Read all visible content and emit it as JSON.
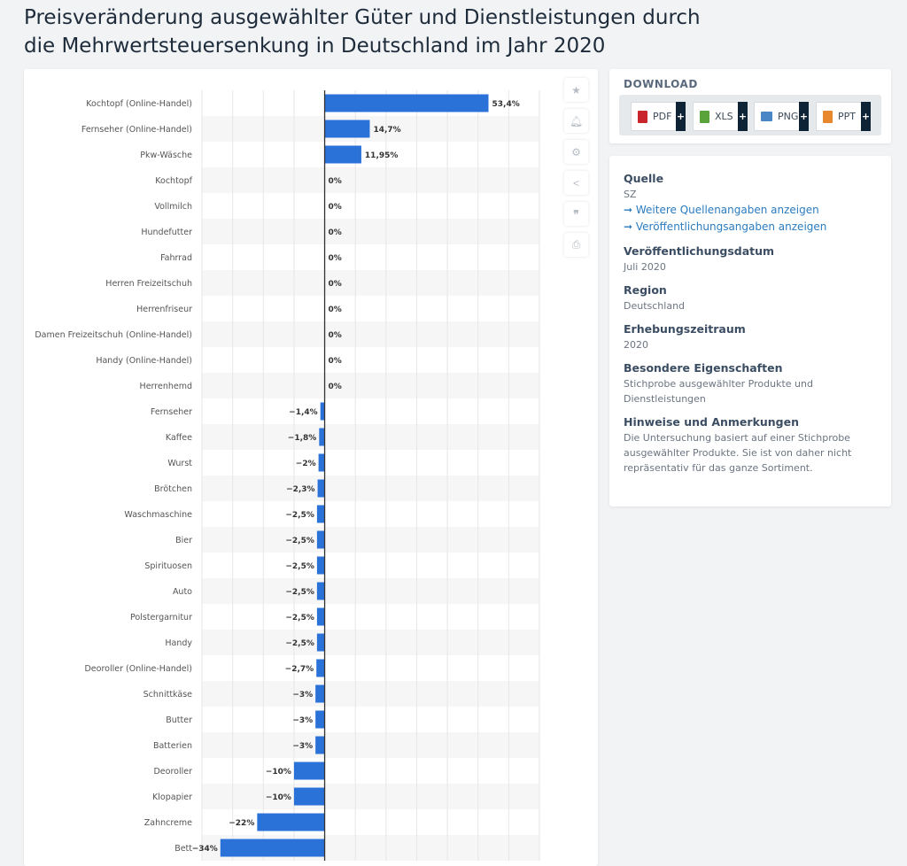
{
  "title": "Preisveränderung ausgewählter Güter und Dienstleistungen durch die Mehrwertsteuersenkung in Deutschland im Jahr 2020",
  "side_icons": [
    "star-icon",
    "bell-icon",
    "gear-icon",
    "share-icon",
    "quote-icon",
    "print-icon"
  ],
  "download": {
    "heading": "DOWNLOAD",
    "buttons": [
      {
        "label": "PDF",
        "color": "#c8262c"
      },
      {
        "label": "XLS",
        "color": "#5aa33b"
      },
      {
        "label": "PNG",
        "color": "#4a86c5"
      },
      {
        "label": "PPT",
        "color": "#e8872c"
      }
    ],
    "plus": "+"
  },
  "info": {
    "source_h": "Quelle",
    "source_v": "SZ",
    "link1": "➞ Weitere Quellenangaben anzeigen",
    "link2": "➞ Veröffentlichungsangaben anzeigen",
    "pub_h": "Veröffentlichungsdatum",
    "pub_v": "Juli 2020",
    "region_h": "Region",
    "region_v": "Deutschland",
    "period_h": "Erhebungszeitraum",
    "period_v": "2020",
    "props_h": "Besondere Eigenschaften",
    "props_v": "Stichprobe ausgewählter Produkte und Dienstleistungen",
    "notes_h": "Hinweise und Anmerkungen",
    "notes_v": "Die Untersuchung basiert auf einer Stichprobe ausgewählter Produkte. Sie ist von daher nicht repräsentativ für das ganze Sortiment."
  },
  "chart_data": {
    "type": "bar",
    "orientation": "horizontal",
    "bar_color": "#2a72d8",
    "xlim": [
      -40,
      70
    ],
    "grid": true,
    "categories": [
      "Kochtopf (Online-Handel)",
      "Fernseher (Online-Handel)",
      "Pkw-Wäsche",
      "Kochtopf",
      "Vollmilch",
      "Hundefutter",
      "Fahrrad",
      "Herren Freizeitschuh",
      "Herrenfriseur",
      "Damen Freizeitschuh (Online-Handel)",
      "Handy (Online-Handel)",
      "Herrenhemd",
      "Fernseher",
      "Kaffee",
      "Wurst",
      "Brötchen",
      "Waschmaschine",
      "Bier",
      "Spirituosen",
      "Auto",
      "Polstergarnitur",
      "Handy",
      "Deoroller (Online-Handel)",
      "Schnittkäse",
      "Butter",
      "Batterien",
      "Deoroller",
      "Klopapier",
      "Zahncreme",
      "Bett"
    ],
    "values": [
      53.4,
      14.7,
      11.95,
      0,
      0,
      0,
      0,
      0,
      0,
      0,
      0,
      0,
      -1.4,
      -1.8,
      -2,
      -2.3,
      -2.5,
      -2.5,
      -2.5,
      -2.5,
      -2.5,
      -2.5,
      -2.7,
      -3,
      -3,
      -3,
      -10,
      -10,
      -22,
      -34
    ],
    "value_labels": [
      "53,4%",
      "14,7%",
      "11,95%",
      "0%",
      "0%",
      "0%",
      "0%",
      "0%",
      "0%",
      "0%",
      "0%",
      "0%",
      "−1,4%",
      "−1,8%",
      "−2%",
      "−2,3%",
      "−2,5%",
      "−2,5%",
      "−2,5%",
      "−2,5%",
      "−2,5%",
      "−2,5%",
      "−2,7%",
      "−3%",
      "−3%",
      "−3%",
      "−10%",
      "−10%",
      "−22%",
      "−34%"
    ]
  }
}
